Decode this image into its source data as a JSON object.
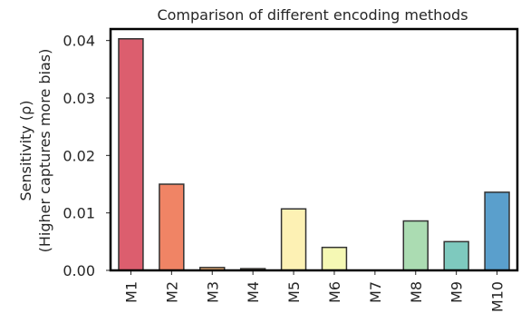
{
  "chart_data": {
    "type": "bar",
    "title": "Comparison of different encoding methods",
    "ylabel_lines": [
      "Sensitivity (ρ)",
      "(Higher captures more bias)"
    ],
    "xlabel": "",
    "categories": [
      "M1",
      "M2",
      "M3",
      "M4",
      "M5",
      "M6",
      "M7",
      "M8",
      "M9",
      "M10"
    ],
    "values": [
      0.0403,
      0.015,
      0.0005,
      0.0003,
      0.0107,
      0.004,
      0.0,
      0.0086,
      0.005,
      0.0136
    ],
    "colors": [
      "#dc5e6e",
      "#f08465",
      "#f9b77a",
      "#fdd992",
      "#fdf1b4",
      "#f5f8b4",
      "#e3f3b3",
      "#abdcb2",
      "#7ec9be",
      "#5a9fcc"
    ],
    "ylim": [
      0,
      0.042
    ],
    "yticks": [
      0.0,
      0.01,
      0.02,
      0.03,
      0.04
    ],
    "ytick_labels": [
      "0.00",
      "0.01",
      "0.02",
      "0.03",
      "0.04"
    ],
    "grid": false,
    "legend": "none"
  }
}
